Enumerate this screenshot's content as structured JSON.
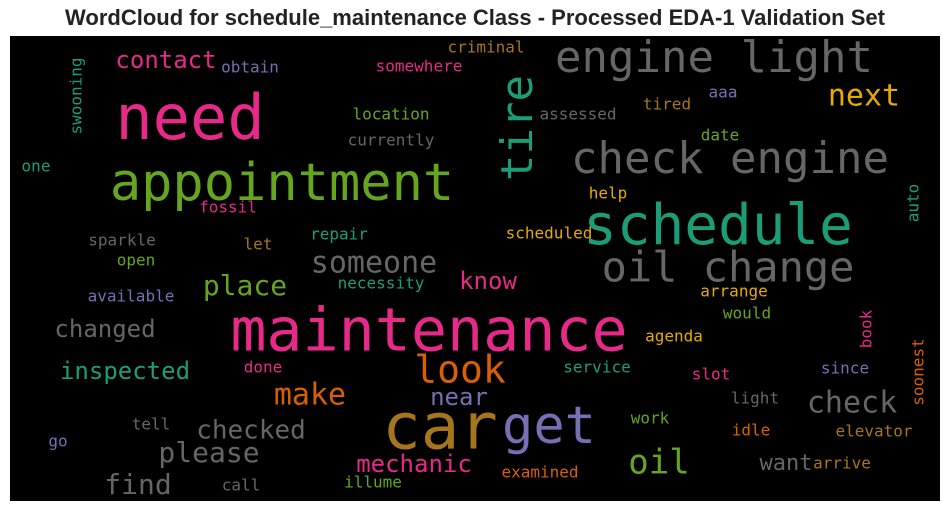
{
  "chart_data": {
    "type": "wordcloud",
    "title": "WordCloud for schedule_maintenance Class - Processed EDA-1 Validation Set",
    "background": "#000000",
    "palette": {
      "pink": "#e7298a",
      "green": "#66a61e",
      "teal": "#1b9e77",
      "gray": "#666666",
      "gold": "#a6761d",
      "purple": "#7570b3",
      "orange": "#d95f02",
      "yellow": "#e6ab02"
    },
    "words": [
      {
        "text": "need",
        "color": "pink",
        "rotated": false
      },
      {
        "text": "appointment",
        "color": "green",
        "rotated": false
      },
      {
        "text": "engine light",
        "color": "gray",
        "rotated": false
      },
      {
        "text": "check engine",
        "color": "gray",
        "rotated": false
      },
      {
        "text": "tire",
        "color": "teal",
        "rotated": true
      },
      {
        "text": "schedule",
        "color": "teal",
        "rotated": false
      },
      {
        "text": "oil change",
        "color": "gray",
        "rotated": false
      },
      {
        "text": "maintenance",
        "color": "pink",
        "rotated": false
      },
      {
        "text": "car",
        "color": "gold",
        "rotated": false
      },
      {
        "text": "get",
        "color": "purple",
        "rotated": false
      },
      {
        "text": "look",
        "color": "orange",
        "rotated": false
      },
      {
        "text": "someone",
        "color": "gray",
        "rotated": false
      },
      {
        "text": "next",
        "color": "yellow",
        "rotated": false
      },
      {
        "text": "contact",
        "color": "pink",
        "rotated": false
      },
      {
        "text": "place",
        "color": "green",
        "rotated": false
      },
      {
        "text": "make",
        "color": "orange",
        "rotated": false
      },
      {
        "text": "oil",
        "color": "green",
        "rotated": false
      },
      {
        "text": "check",
        "color": "gray",
        "rotated": false
      },
      {
        "text": "inspected",
        "color": "teal",
        "rotated": false
      },
      {
        "text": "changed",
        "color": "gray",
        "rotated": false
      },
      {
        "text": "checked",
        "color": "gray",
        "rotated": false
      },
      {
        "text": "please",
        "color": "gray",
        "rotated": false
      },
      {
        "text": "find",
        "color": "gray",
        "rotated": false
      },
      {
        "text": "mechanic",
        "color": "pink",
        "rotated": false
      },
      {
        "text": "know",
        "color": "pink",
        "rotated": false
      },
      {
        "text": "near",
        "color": "purple",
        "rotated": false
      },
      {
        "text": "want",
        "color": "gray",
        "rotated": false
      },
      {
        "text": "criminal",
        "color": "gold",
        "rotated": false
      },
      {
        "text": "obtain",
        "color": "purple",
        "rotated": false
      },
      {
        "text": "somewhere",
        "color": "pink",
        "rotated": false
      },
      {
        "text": "swooning",
        "color": "teal",
        "rotated": true
      },
      {
        "text": "location",
        "color": "green",
        "rotated": false
      },
      {
        "text": "currently",
        "color": "gray",
        "rotated": false
      },
      {
        "text": "assessed",
        "color": "gray",
        "rotated": false
      },
      {
        "text": "tired",
        "color": "gold",
        "rotated": false
      },
      {
        "text": "aaa",
        "color": "purple",
        "rotated": false
      },
      {
        "text": "one",
        "color": "teal",
        "rotated": false
      },
      {
        "text": "fossil",
        "color": "pink",
        "rotated": false
      },
      {
        "text": "date",
        "color": "green",
        "rotated": false
      },
      {
        "text": "help",
        "color": "yellow",
        "rotated": false
      },
      {
        "text": "auto",
        "color": "teal",
        "rotated": true
      },
      {
        "text": "sparkle",
        "color": "gray",
        "rotated": false
      },
      {
        "text": "let",
        "color": "gold",
        "rotated": false
      },
      {
        "text": "repair",
        "color": "teal",
        "rotated": false
      },
      {
        "text": "scheduled",
        "color": "yellow",
        "rotated": false
      },
      {
        "text": "open",
        "color": "green",
        "rotated": false
      },
      {
        "text": "available",
        "color": "purple",
        "rotated": false
      },
      {
        "text": "necessity",
        "color": "teal",
        "rotated": false
      },
      {
        "text": "arrange",
        "color": "yellow",
        "rotated": false
      },
      {
        "text": "would",
        "color": "green",
        "rotated": false
      },
      {
        "text": "agenda",
        "color": "yellow",
        "rotated": false
      },
      {
        "text": "book",
        "color": "pink",
        "rotated": true
      },
      {
        "text": "soonest",
        "color": "orange",
        "rotated": true
      },
      {
        "text": "done",
        "color": "pink",
        "rotated": false
      },
      {
        "text": "service",
        "color": "teal",
        "rotated": false
      },
      {
        "text": "slot",
        "color": "pink",
        "rotated": false
      },
      {
        "text": "since",
        "color": "purple",
        "rotated": false
      },
      {
        "text": "light",
        "color": "gray",
        "rotated": false
      },
      {
        "text": "tell",
        "color": "gray",
        "rotated": false
      },
      {
        "text": "go",
        "color": "purple",
        "rotated": false
      },
      {
        "text": "work",
        "color": "green",
        "rotated": false
      },
      {
        "text": "idle",
        "color": "orange",
        "rotated": false
      },
      {
        "text": "elevator",
        "color": "gold",
        "rotated": false
      },
      {
        "text": "arrive",
        "color": "gold",
        "rotated": false
      },
      {
        "text": "examined",
        "color": "orange",
        "rotated": false
      },
      {
        "text": "illume",
        "color": "green",
        "rotated": false
      },
      {
        "text": "call",
        "color": "gray",
        "rotated": false
      }
    ]
  }
}
